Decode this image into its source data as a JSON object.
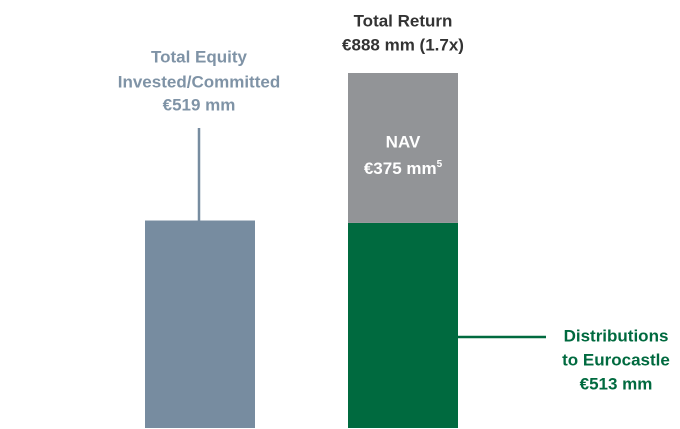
{
  "chart_data": {
    "type": "bar",
    "stacked": true,
    "bars": [
      {
        "label": [
          "Total Equity",
          "Invested/Committed",
          "€519 mm"
        ],
        "segments": [
          {
            "value": 519,
            "color": "#778ca0"
          }
        ]
      },
      {
        "label": [
          "Total Return",
          "€888 mm (1.7x)"
        ],
        "segments": [
          {
            "value": 513,
            "color": "#006a3f",
            "label": [
              "Distributions",
              "to Eurocastle",
              "€513 mm"
            ]
          },
          {
            "value": 375,
            "color": "#929497",
            "label": [
              "NAV",
              "€375 mm"
            ],
            "footnote": "5"
          }
        ]
      }
    ]
  }
}
